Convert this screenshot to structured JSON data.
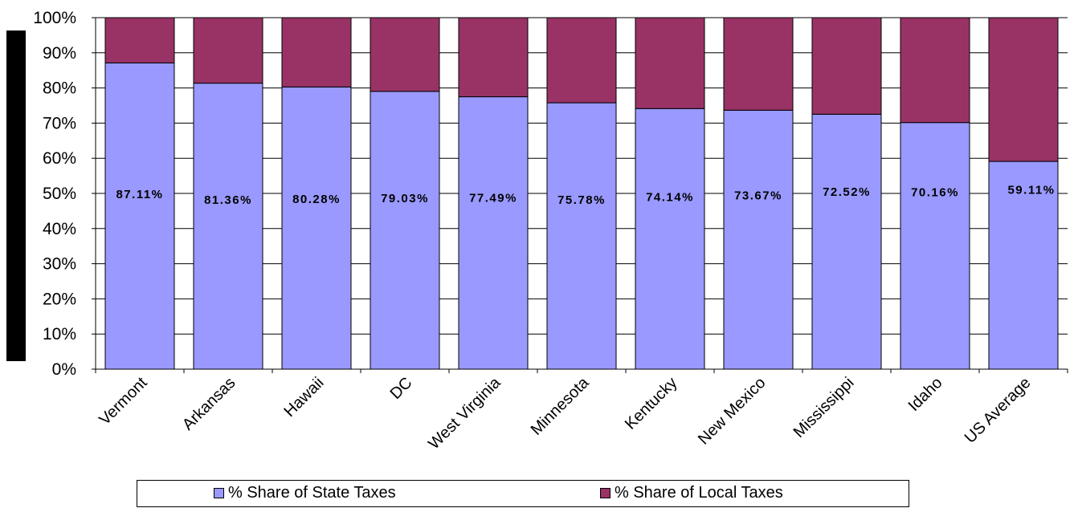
{
  "chart_data": {
    "type": "bar",
    "stacked": true,
    "categories": [
      "Vermont",
      "Arkansas",
      "Hawaii",
      "DC",
      "West Virginia",
      "Minnesota",
      "Kentucky",
      "New Mexico",
      "Mississippi",
      "Idaho",
      "US Average"
    ],
    "series": [
      {
        "name": "% Share of State Taxes",
        "color": "#9999ff",
        "values": [
          87.11,
          81.36,
          80.28,
          79.03,
          77.49,
          75.78,
          74.14,
          73.67,
          72.52,
          70.16,
          59.11
        ],
        "labels": [
          "87.11%",
          "81.36%",
          "80.28%",
          "79.03%",
          "77.49%",
          "75.78%",
          "74.14%",
          "73.67%",
          "72.52%",
          "70.16%",
          "59.11%"
        ]
      },
      {
        "name": "% Share of Local Taxes",
        "color": "#993366",
        "values": [
          12.89,
          18.64,
          19.72,
          20.97,
          22.51,
          24.22,
          25.86,
          26.33,
          27.48,
          29.84,
          40.89
        ]
      }
    ],
    "ylim": [
      0,
      100
    ],
    "yticks": [
      "0%",
      "10%",
      "20%",
      "30%",
      "40%",
      "50%",
      "60%",
      "70%",
      "80%",
      "90%",
      "100%"
    ],
    "grid": true,
    "legend_position": "bottom"
  }
}
